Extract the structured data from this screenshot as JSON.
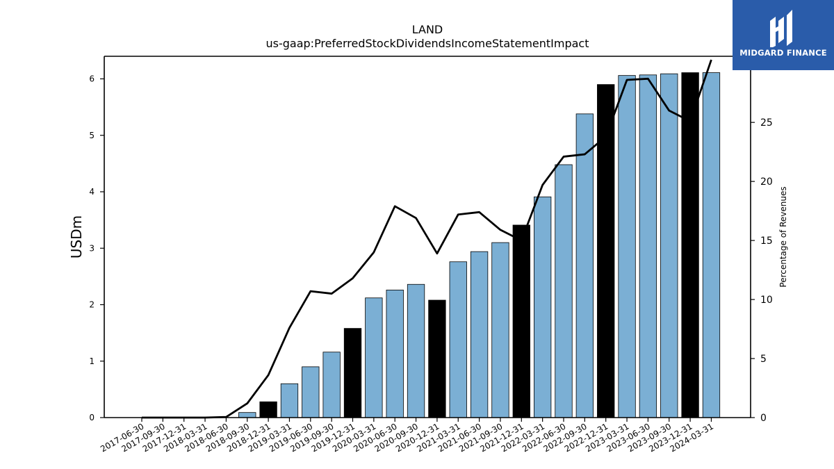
{
  "chart_data": {
    "type": "bar",
    "title": "LAND",
    "subtitle": "us-gaap:PreferredStockDividendsIncomeStatementImpact",
    "ylabel": "USDm",
    "y2label": "Percentage of Revenues",
    "ylim": [
      0,
      6.4
    ],
    "y2lim": [
      0,
      30.6
    ],
    "yticks": [
      0,
      1,
      2,
      3,
      4,
      5,
      6
    ],
    "y2ticks": [
      0,
      5,
      10,
      15,
      20,
      25,
      30
    ],
    "categories": [
      "2017-06-30",
      "2017-09-30",
      "2017-12-31",
      "2018-03-31",
      "2018-06-30",
      "2018-09-30",
      "2018-12-31",
      "2019-03-31",
      "2019-06-30",
      "2019-09-30",
      "2019-12-31",
      "2020-03-31",
      "2020-06-30",
      "2020-09-30",
      "2020-12-31",
      "2021-03-31",
      "2021-06-30",
      "2021-09-30",
      "2021-12-31",
      "2022-03-31",
      "2022-06-30",
      "2022-09-30",
      "2022-12-31",
      "2023-03-31",
      "2023-06-30",
      "2023-09-30",
      "2023-12-31",
      "2024-03-31"
    ],
    "series": [
      {
        "values": [
          0,
          0,
          0,
          0,
          0,
          0.09,
          0.28,
          0.6,
          0.9,
          1.16,
          1.58,
          2.12,
          2.26,
          2.36,
          2.08,
          2.76,
          2.94,
          3.1,
          3.41,
          3.91,
          4.48,
          5.38,
          5.9,
          6.06,
          6.07,
          6.09,
          6.11,
          6.11
        ],
        "highlight": [
          false,
          false,
          false,
          false,
          false,
          false,
          true,
          false,
          false,
          false,
          true,
          false,
          false,
          false,
          true,
          false,
          false,
          false,
          true,
          false,
          false,
          false,
          true,
          false,
          false,
          false,
          true,
          false
        ],
        "color": "#7bafd4",
        "highlight_color": "#000000"
      },
      {
        "axis": "right",
        "type": "line",
        "values": [
          0,
          0,
          0,
          0,
          0.05,
          1.2,
          3.6,
          7.6,
          10.7,
          10.5,
          11.8,
          14.0,
          17.9,
          16.9,
          13.9,
          17.2,
          17.4,
          15.9,
          15.0,
          19.7,
          22.1,
          22.3,
          23.8,
          28.6,
          28.7,
          26.0,
          25.1,
          30.3
        ],
        "color": "#000000"
      }
    ],
    "grid": false,
    "legend": "none"
  },
  "logo": {
    "text": "MIDGARD FINANCE",
    "background": "#2a5caa"
  }
}
